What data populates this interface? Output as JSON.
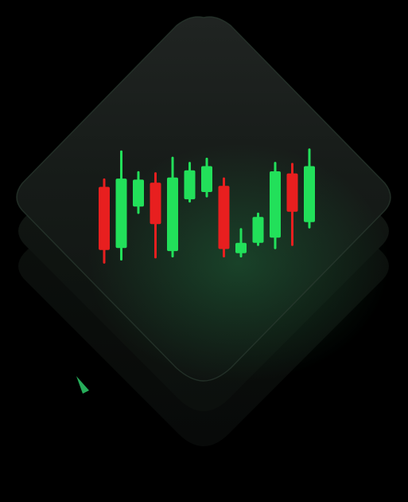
{
  "illustration": {
    "subject": "stacked-tiles-candlestick",
    "colors": {
      "background": "#000000",
      "tile_top": "#1a1f1c",
      "tile_mid": "#111612",
      "tile_bottom": "#0b0e0c",
      "glow": "#2fd870",
      "bull": "#22e05a",
      "bear": "#e81f1f"
    }
  },
  "chart_data": {
    "type": "candlestick",
    "candles": [
      {
        "direction": "bear",
        "open": 7.5,
        "close": 1.4,
        "high": 8.2,
        "low": 0.2
      },
      {
        "direction": "bull",
        "open": 1.6,
        "close": 8.3,
        "high": 10.9,
        "low": 0.5
      },
      {
        "direction": "bull",
        "open": 5.6,
        "close": 8.2,
        "high": 8.9,
        "low": 5.0
      },
      {
        "direction": "bear",
        "open": 7.9,
        "close": 3.9,
        "high": 8.8,
        "low": 0.7
      },
      {
        "direction": "bull",
        "open": 1.3,
        "close": 8.4,
        "high": 10.3,
        "low": 0.8
      },
      {
        "direction": "bull",
        "open": 6.3,
        "close": 9.1,
        "high": 9.8,
        "low": 6.1
      },
      {
        "direction": "bull",
        "open": 7.0,
        "close": 9.5,
        "high": 10.2,
        "low": 6.6
      },
      {
        "direction": "bear",
        "open": 7.6,
        "close": 1.5,
        "high": 8.3,
        "low": 0.8
      },
      {
        "direction": "bull",
        "open": 1.1,
        "close": 2.1,
        "high": 3.4,
        "low": 0.8
      },
      {
        "direction": "bull",
        "open": 2.1,
        "close": 4.6,
        "high": 4.9,
        "low": 1.9
      },
      {
        "direction": "bull",
        "open": 2.6,
        "close": 9.0,
        "high": 9.8,
        "low": 1.6
      },
      {
        "direction": "bear",
        "open": 8.8,
        "close": 5.1,
        "high": 9.7,
        "low": 1.9
      },
      {
        "direction": "bull",
        "open": 4.1,
        "close": 9.5,
        "high": 11.1,
        "low": 3.6
      }
    ]
  }
}
